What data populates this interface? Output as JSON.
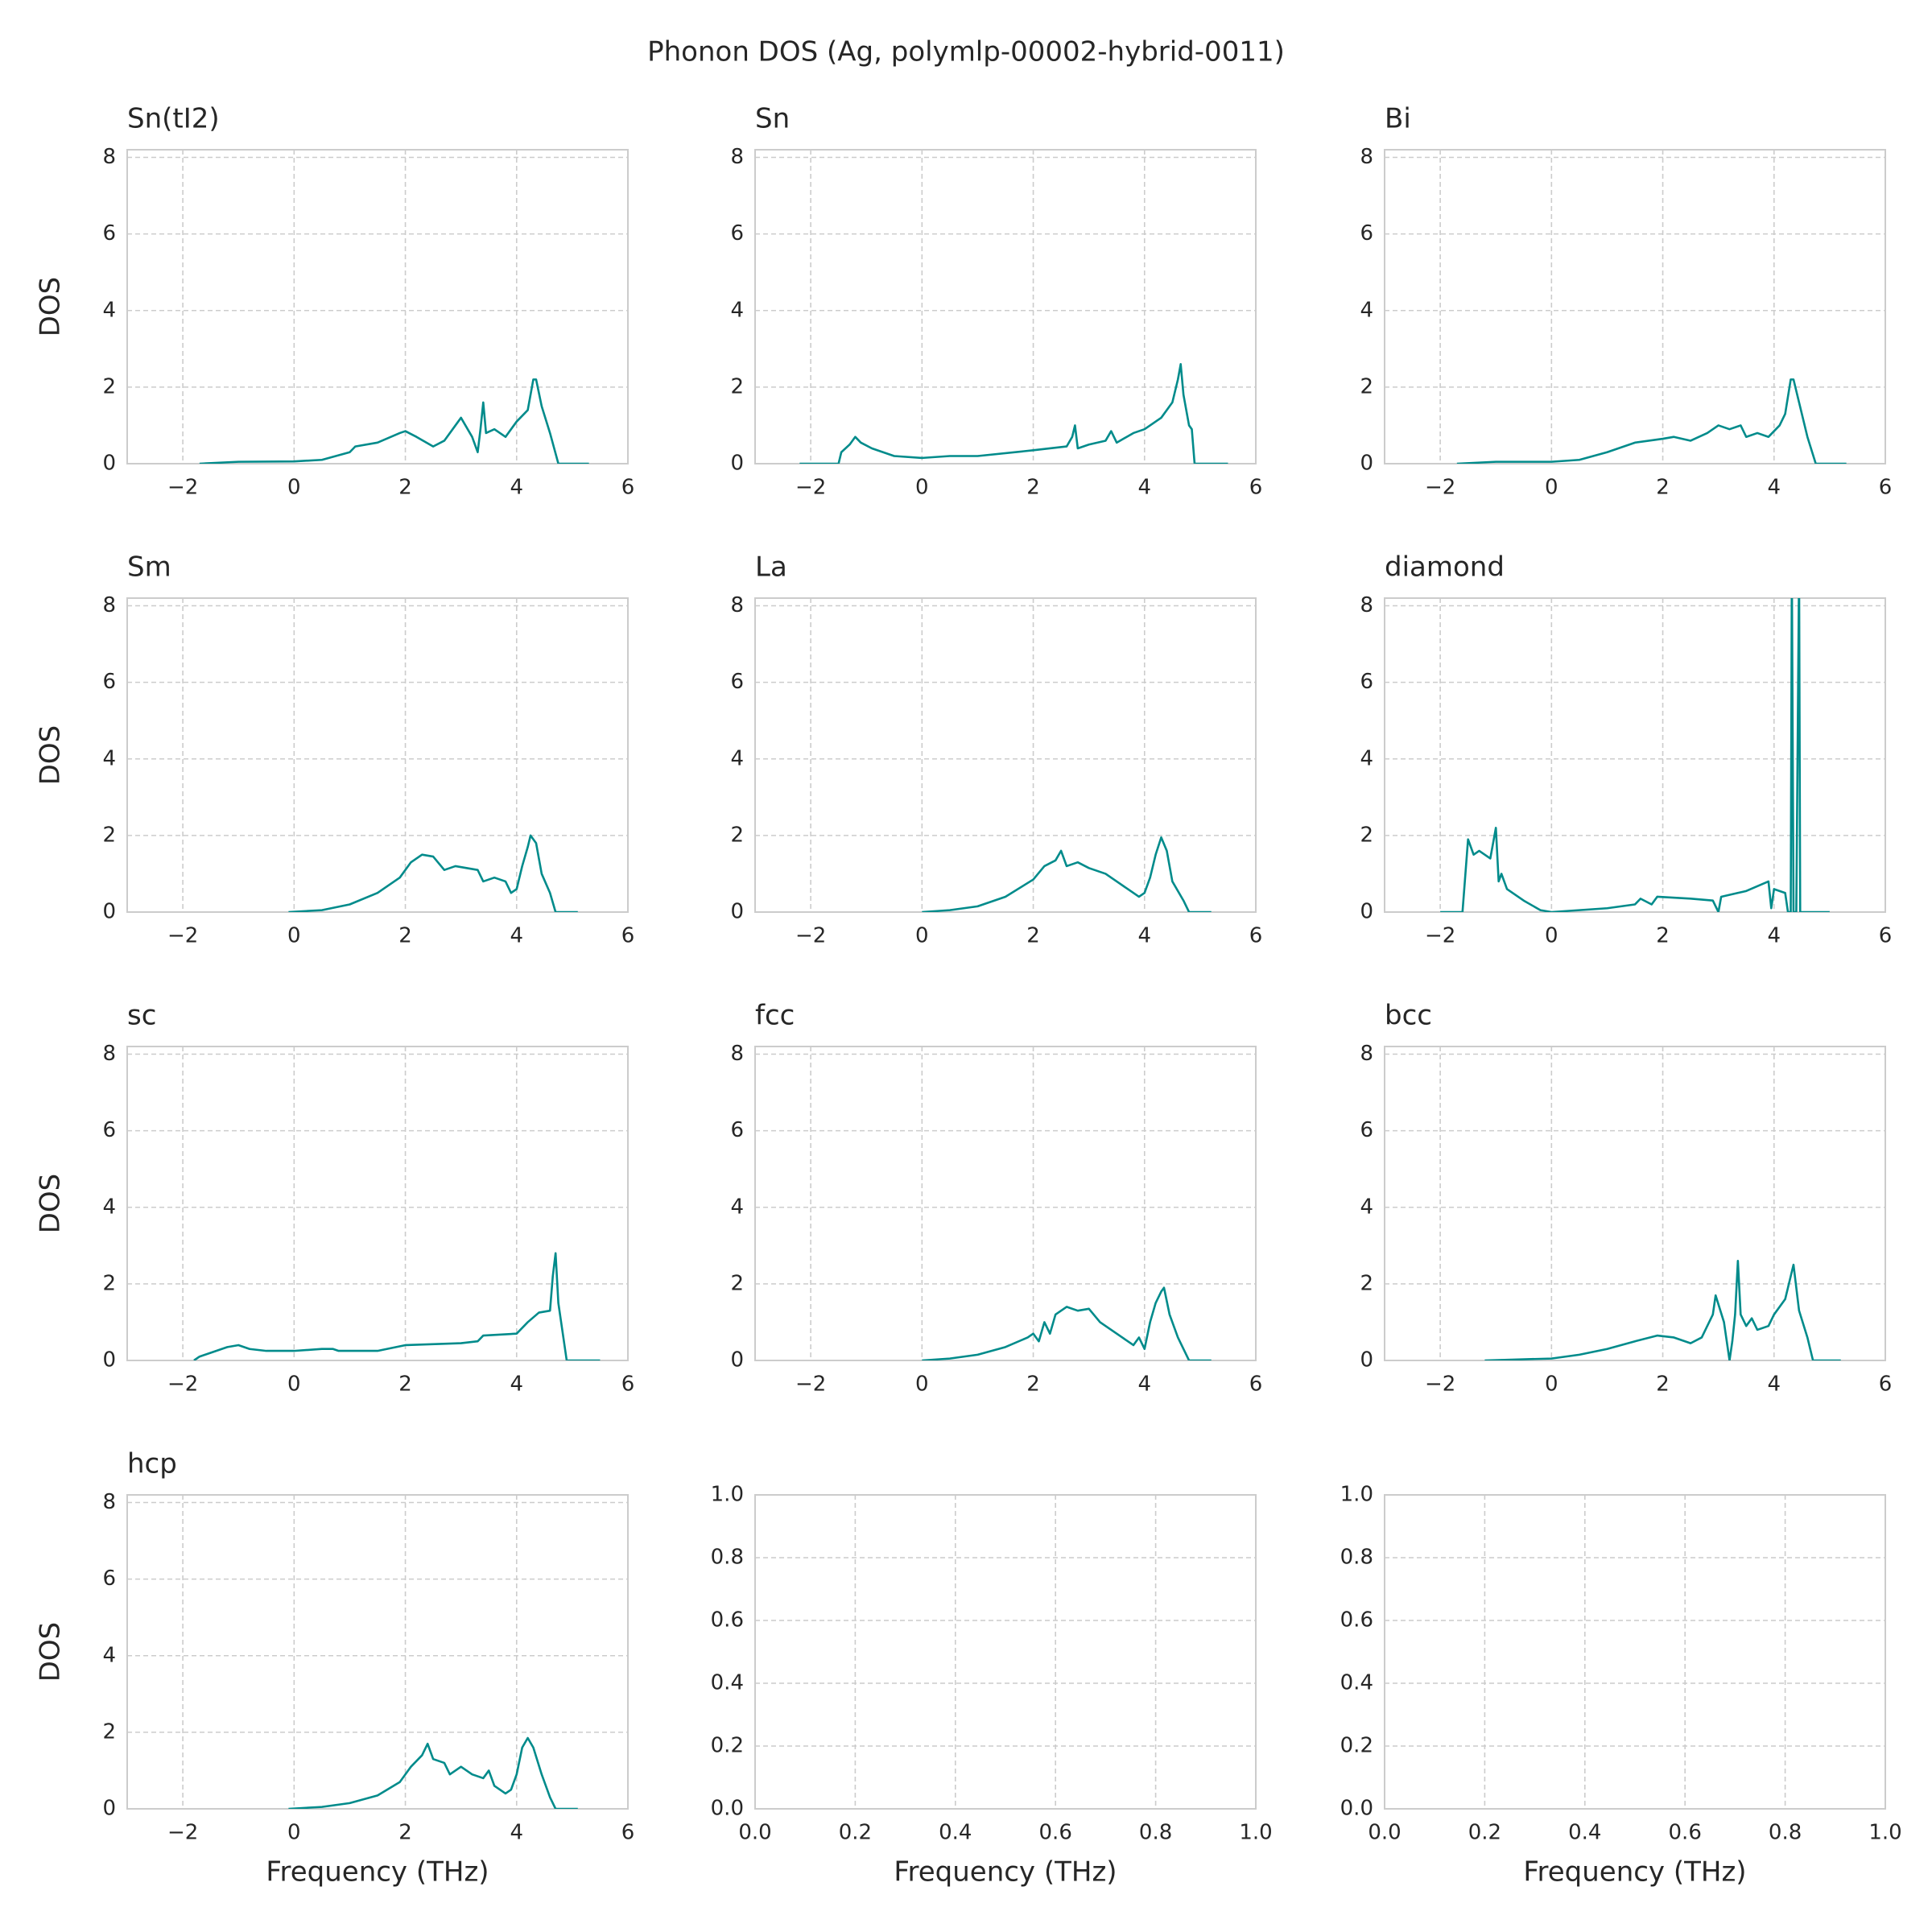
{
  "title": "Phonon DOS (Ag, polymlp-00002-hybrid-0011)",
  "chart_data": [
    {
      "type": "line",
      "title": "Sn(tI2)",
      "ylabel": "DOS",
      "color": "#008b8b",
      "grid": true,
      "xlim": [
        -3,
        6
      ],
      "ylim": [
        0,
        8.2
      ],
      "xticks": [
        {
          "value": -2,
          "label": "−2"
        },
        0,
        2,
        4,
        6
      ],
      "yticks": [
        0,
        2,
        4,
        6,
        8
      ],
      "x": [
        -1.7,
        -1,
        0,
        0.5,
        1,
        1.1,
        1.5,
        1.9,
        2.0,
        2.2,
        2.5,
        2.7,
        2.9,
        3.0,
        3.2,
        3.3,
        3.35,
        3.4,
        3.45,
        3.6,
        3.8,
        4.0,
        4.2,
        4.3,
        4.35,
        4.45,
        4.6,
        4.75,
        5.3
      ],
      "values": [
        0,
        0.05,
        0.06,
        0.1,
        0.3,
        0.45,
        0.55,
        0.8,
        0.85,
        0.7,
        0.45,
        0.6,
        1.0,
        1.2,
        0.7,
        0.3,
        0.9,
        1.6,
        0.8,
        0.9,
        0.7,
        1.1,
        1.4,
        2.2,
        2.2,
        1.5,
        0.8,
        0,
        0
      ]
    },
    {
      "type": "line",
      "title": "Sn",
      "color": "#008b8b",
      "grid": true,
      "xlim": [
        -3,
        6
      ],
      "ylim": [
        0,
        8.2
      ],
      "xticks": [
        {
          "value": -2,
          "label": "−2"
        },
        0,
        2,
        4,
        6
      ],
      "yticks": [
        0,
        2,
        4,
        6,
        8
      ],
      "x": [
        -2.2,
        -1.5,
        -1.45,
        -1.3,
        -1.2,
        -1.1,
        -0.9,
        -0.5,
        0,
        0.5,
        1,
        2,
        2.6,
        2.7,
        2.75,
        2.8,
        3.0,
        3.3,
        3.4,
        3.5,
        3.8,
        4.0,
        4.3,
        4.5,
        4.6,
        4.65,
        4.7,
        4.8,
        4.85,
        4.9,
        5.5
      ],
      "values": [
        0,
        0,
        0.3,
        0.5,
        0.7,
        0.55,
        0.4,
        0.2,
        0.15,
        0.2,
        0.2,
        0.35,
        0.45,
        0.7,
        1.0,
        0.4,
        0.5,
        0.6,
        0.85,
        0.55,
        0.8,
        0.9,
        1.2,
        1.6,
        2.2,
        2.6,
        1.8,
        1.0,
        0.9,
        0,
        0
      ]
    },
    {
      "type": "line",
      "title": "Bi",
      "color": "#008b8b",
      "grid": true,
      "xlim": [
        -3,
        6
      ],
      "ylim": [
        0,
        8.2
      ],
      "xticks": [
        {
          "value": -2,
          "label": "−2"
        },
        0,
        2,
        4,
        6
      ],
      "yticks": [
        0,
        2,
        4,
        6,
        8
      ],
      "x": [
        -1.7,
        -1,
        0,
        0.5,
        1,
        1.2,
        1.5,
        2.0,
        2.2,
        2.5,
        2.8,
        3.0,
        3.2,
        3.4,
        3.5,
        3.7,
        3.9,
        4.1,
        4.2,
        4.3,
        4.35,
        4.45,
        4.6,
        4.75,
        5.3
      ],
      "values": [
        0,
        0.05,
        0.05,
        0.1,
        0.3,
        0.4,
        0.55,
        0.65,
        0.7,
        0.6,
        0.8,
        1.0,
        0.9,
        1.0,
        0.7,
        0.8,
        0.7,
        1.0,
        1.3,
        2.2,
        2.2,
        1.6,
        0.7,
        0,
        0
      ]
    },
    {
      "type": "line",
      "title": "Sm",
      "ylabel": "DOS",
      "color": "#008b8b",
      "grid": true,
      "xlim": [
        -3,
        6
      ],
      "ylim": [
        0,
        8.2
      ],
      "xticks": [
        {
          "value": -2,
          "label": "−2"
        },
        0,
        2,
        4,
        6
      ],
      "yticks": [
        0,
        2,
        4,
        6,
        8
      ],
      "x": [
        -0.1,
        0.5,
        1,
        1.5,
        1.9,
        2.1,
        2.3,
        2.5,
        2.7,
        2.9,
        3.1,
        3.3,
        3.4,
        3.6,
        3.8,
        3.9,
        4.0,
        4.1,
        4.2,
        4.25,
        4.35,
        4.45,
        4.6,
        4.7,
        5.1
      ],
      "values": [
        0,
        0.05,
        0.2,
        0.5,
        0.9,
        1.3,
        1.5,
        1.45,
        1.1,
        1.2,
        1.15,
        1.1,
        0.8,
        0.9,
        0.8,
        0.5,
        0.6,
        1.2,
        1.7,
        2.0,
        1.8,
        1.0,
        0.5,
        0,
        0
      ]
    },
    {
      "type": "line",
      "title": "La",
      "color": "#008b8b",
      "grid": true,
      "xlim": [
        -3,
        6
      ],
      "ylim": [
        0,
        8.2
      ],
      "xticks": [
        {
          "value": -2,
          "label": "−2"
        },
        0,
        2,
        4,
        6
      ],
      "yticks": [
        0,
        2,
        4,
        6,
        8
      ],
      "x": [
        0,
        0.5,
        1,
        1.5,
        2.0,
        2.2,
        2.4,
        2.5,
        2.6,
        2.8,
        3.0,
        3.3,
        3.5,
        3.7,
        3.9,
        4.0,
        4.1,
        4.2,
        4.3,
        4.4,
        4.5,
        4.7,
        4.8,
        5.2
      ],
      "values": [
        0,
        0.05,
        0.15,
        0.4,
        0.85,
        1.2,
        1.35,
        1.6,
        1.2,
        1.3,
        1.15,
        1.0,
        0.8,
        0.6,
        0.4,
        0.5,
        0.9,
        1.5,
        1.95,
        1.6,
        0.8,
        0.3,
        0,
        0
      ]
    },
    {
      "type": "line",
      "title": "diamond",
      "color": "#008b8b",
      "grid": true,
      "xlim": [
        -3,
        6
      ],
      "ylim": [
        0,
        8.2
      ],
      "xticks": [
        {
          "value": -2,
          "label": "−2"
        },
        0,
        2,
        4,
        6
      ],
      "yticks": [
        0,
        2,
        4,
        6,
        8
      ],
      "x": [
        -2,
        -1.6,
        -1.5,
        -1.4,
        -1.3,
        -1.1,
        -1.0,
        -0.95,
        -0.9,
        -0.8,
        -0.5,
        -0.2,
        0,
        0.5,
        1,
        1.5,
        1.6,
        1.8,
        1.9,
        2.5,
        2.9,
        3.0,
        3.05,
        3.5,
        3.9,
        3.95,
        4.0,
        4.2,
        4.25,
        4.3,
        4.32,
        4.35,
        4.4,
        4.45,
        4.47,
        5.0
      ],
      "values": [
        0,
        0,
        1.9,
        1.5,
        1.6,
        1.4,
        2.2,
        0.8,
        1.0,
        0.6,
        0.3,
        0.05,
        0,
        0.05,
        0.1,
        0.2,
        0.35,
        0.2,
        0.4,
        0.35,
        0.3,
        0,
        0.4,
        0.55,
        0.8,
        0.1,
        0.6,
        0.5,
        0,
        0,
        9,
        0,
        0,
        9,
        0,
        0
      ]
    },
    {
      "type": "line",
      "title": "sc",
      "ylabel": "DOS",
      "color": "#008b8b",
      "grid": true,
      "xlim": [
        -3,
        6
      ],
      "ylim": [
        0,
        8.2
      ],
      "xticks": [
        {
          "value": -2,
          "label": "−2"
        },
        0,
        2,
        4,
        6
      ],
      "yticks": [
        0,
        2,
        4,
        6,
        8
      ],
      "x": [
        -1.8,
        -1.7,
        -1.5,
        -1.2,
        -1.0,
        -0.8,
        -0.5,
        0,
        0.5,
        0.7,
        0.8,
        1.5,
        2.0,
        3.0,
        3.3,
        3.4,
        4.0,
        4.2,
        4.4,
        4.6,
        4.65,
        4.7,
        4.75,
        4.85,
        4.9,
        5.5
      ],
      "values": [
        0,
        0.1,
        0.2,
        0.35,
        0.4,
        0.3,
        0.25,
        0.25,
        0.3,
        0.3,
        0.25,
        0.25,
        0.4,
        0.45,
        0.5,
        0.65,
        0.7,
        1.0,
        1.25,
        1.3,
        2.2,
        2.8,
        1.5,
        0.5,
        0,
        0
      ]
    },
    {
      "type": "line",
      "title": "fcc",
      "color": "#008b8b",
      "grid": true,
      "xlim": [
        -3,
        6
      ],
      "ylim": [
        0,
        8.2
      ],
      "xticks": [
        {
          "value": -2,
          "label": "−2"
        },
        0,
        2,
        4,
        6
      ],
      "yticks": [
        0,
        2,
        4,
        6,
        8
      ],
      "x": [
        0,
        0.5,
        1,
        1.5,
        1.9,
        2.0,
        2.1,
        2.2,
        2.3,
        2.4,
        2.6,
        2.8,
        3.0,
        3.2,
        3.4,
        3.6,
        3.8,
        3.9,
        4.0,
        4.1,
        4.2,
        4.3,
        4.35,
        4.45,
        4.6,
        4.8,
        5.2
      ],
      "values": [
        0,
        0.05,
        0.15,
        0.35,
        0.6,
        0.7,
        0.5,
        1.0,
        0.7,
        1.2,
        1.4,
        1.3,
        1.35,
        1.0,
        0.8,
        0.6,
        0.4,
        0.6,
        0.3,
        1.0,
        1.5,
        1.8,
        1.9,
        1.2,
        0.6,
        0,
        0
      ]
    },
    {
      "type": "line",
      "title": "bcc",
      "color": "#008b8b",
      "grid": true,
      "xlim": [
        -3,
        6
      ],
      "ylim": [
        0,
        8.2
      ],
      "xticks": [
        {
          "value": -2,
          "label": "−2"
        },
        0,
        2,
        4,
        6
      ],
      "yticks": [
        0,
        2,
        4,
        6,
        8
      ],
      "x": [
        -1.2,
        0,
        0.5,
        1,
        1.5,
        1.9,
        2.2,
        2.5,
        2.7,
        2.9,
        2.95,
        3.1,
        3.2,
        3.25,
        3.3,
        3.35,
        3.4,
        3.5,
        3.6,
        3.7,
        3.9,
        4.0,
        4.2,
        4.3,
        4.35,
        4.45,
        4.6,
        4.7,
        5.2
      ],
      "values": [
        0,
        0.05,
        0.15,
        0.3,
        0.5,
        0.65,
        0.6,
        0.45,
        0.6,
        1.2,
        1.7,
        1.0,
        0,
        0.5,
        1.2,
        2.6,
        1.2,
        0.9,
        1.1,
        0.8,
        0.9,
        1.2,
        1.6,
        2.2,
        2.5,
        1.3,
        0.6,
        0,
        0
      ]
    },
    {
      "type": "line",
      "title": "hcp",
      "ylabel": "DOS",
      "xlabel": "Frequency (THz)",
      "color": "#008b8b",
      "grid": true,
      "xlim": [
        -3,
        6
      ],
      "ylim": [
        0,
        8.2
      ],
      "xticks": [
        {
          "value": -2,
          "label": "−2"
        },
        0,
        2,
        4,
        6
      ],
      "yticks": [
        0,
        2,
        4,
        6,
        8
      ],
      "x": [
        -0.1,
        0.5,
        1,
        1.5,
        1.9,
        2.1,
        2.3,
        2.4,
        2.5,
        2.7,
        2.8,
        3.0,
        3.2,
        3.4,
        3.5,
        3.6,
        3.8,
        3.9,
        4.0,
        4.1,
        4.2,
        4.3,
        4.45,
        4.6,
        4.7,
        5.1
      ],
      "values": [
        0,
        0.05,
        0.15,
        0.35,
        0.7,
        1.1,
        1.4,
        1.7,
        1.3,
        1.2,
        0.9,
        1.1,
        0.9,
        0.8,
        1.0,
        0.6,
        0.4,
        0.5,
        0.9,
        1.6,
        1.85,
        1.6,
        0.9,
        0.3,
        0,
        0
      ]
    },
    {
      "type": "line",
      "xlabel": "Frequency (THz)",
      "grid": true,
      "xlim": [
        0,
        1
      ],
      "ylim": [
        0,
        1
      ],
      "xticks": [
        {
          "value": 0,
          "label": "0.0"
        },
        {
          "value": 0.2,
          "label": "0.2"
        },
        {
          "value": 0.4,
          "label": "0.4"
        },
        {
          "value": 0.6,
          "label": "0.6"
        },
        {
          "value": 0.8,
          "label": "0.8"
        },
        {
          "value": 1,
          "label": "1.0"
        }
      ],
      "yticks": [
        {
          "value": 0,
          "label": "0.0"
        },
        {
          "value": 0.2,
          "label": "0.2"
        },
        {
          "value": 0.4,
          "label": "0.4"
        },
        {
          "value": 0.6,
          "label": "0.6"
        },
        {
          "value": 0.8,
          "label": "0.8"
        },
        {
          "value": 1,
          "label": "1.0"
        }
      ]
    },
    {
      "type": "line",
      "xlabel": "Frequency (THz)",
      "grid": true,
      "xlim": [
        0,
        1
      ],
      "ylim": [
        0,
        1
      ],
      "xticks": [
        {
          "value": 0,
          "label": "0.0"
        },
        {
          "value": 0.2,
          "label": "0.2"
        },
        {
          "value": 0.4,
          "label": "0.4"
        },
        {
          "value": 0.6,
          "label": "0.6"
        },
        {
          "value": 0.8,
          "label": "0.8"
        },
        {
          "value": 1,
          "label": "1.0"
        }
      ],
      "yticks": [
        {
          "value": 0,
          "label": "0.0"
        },
        {
          "value": 0.2,
          "label": "0.2"
        },
        {
          "value": 0.4,
          "label": "0.4"
        },
        {
          "value": 0.6,
          "label": "0.6"
        },
        {
          "value": 0.8,
          "label": "0.8"
        },
        {
          "value": 1,
          "label": "1.0"
        }
      ]
    }
  ]
}
